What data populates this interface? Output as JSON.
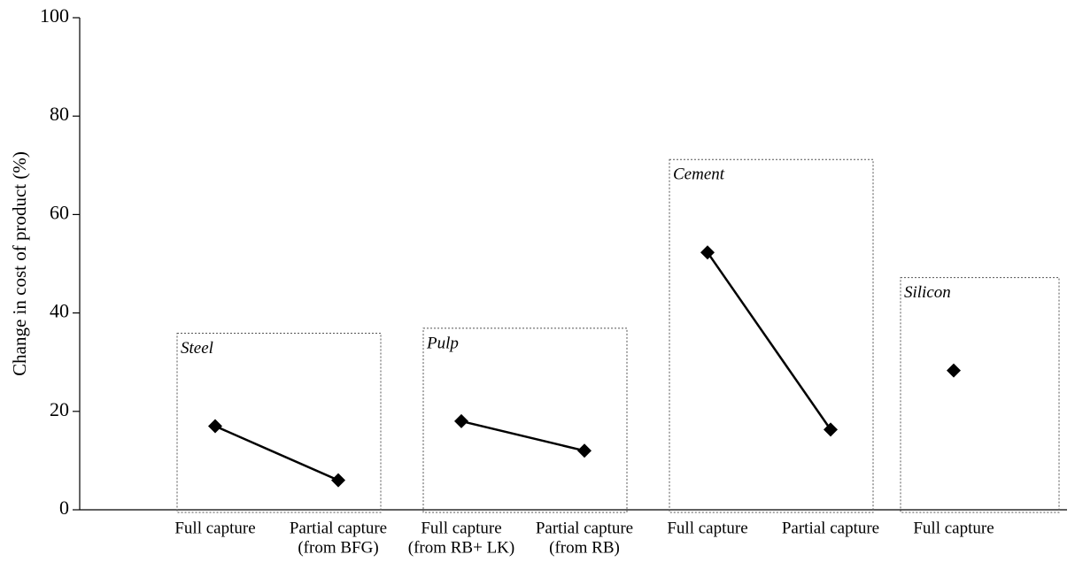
{
  "chart_data": {
    "type": "line",
    "y_label": "Change in cost of product  (%)",
    "ylim": [
      0,
      100
    ],
    "yticks": [
      0,
      20,
      40,
      60,
      80,
      100
    ],
    "color": "#000000",
    "series": [
      {
        "name": "Steel",
        "categories": [
          [
            "Full capture"
          ],
          [
            "Partial capture",
            "(from BFG)"
          ]
        ],
        "values": [
          17,
          6
        ]
      },
      {
        "name": "Pulp",
        "categories": [
          [
            "Full capture",
            "(from RB+ LK)"
          ],
          [
            "Partial capture",
            "(from RB)"
          ]
        ],
        "values": [
          18,
          12
        ]
      },
      {
        "name": "Cement",
        "categories": [
          [
            "Full capture"
          ],
          [
            "Partial capture"
          ]
        ],
        "values": [
          52.3,
          16.3
        ]
      },
      {
        "name": "Silicon",
        "categories": [
          [
            "Full capture"
          ]
        ],
        "values": [
          28.3
        ]
      }
    ]
  }
}
